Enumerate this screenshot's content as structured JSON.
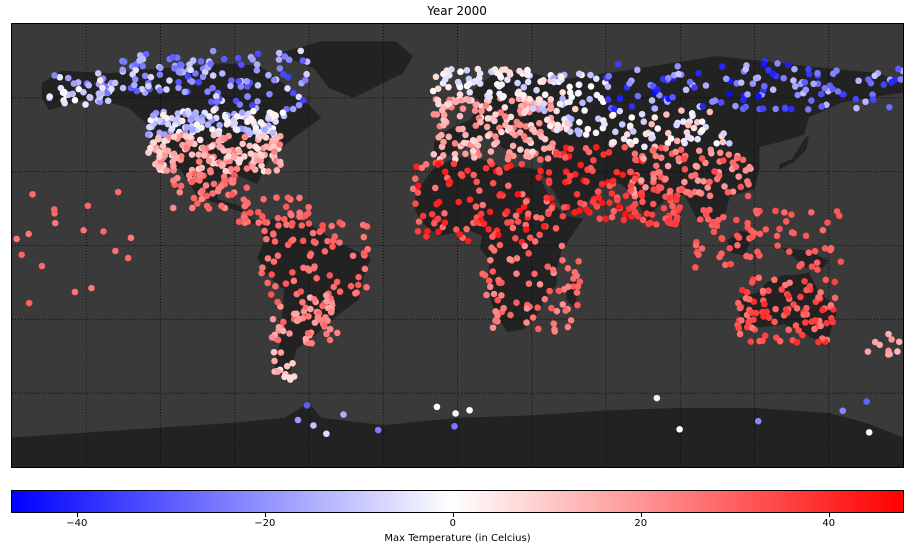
{
  "title": "Year 2000",
  "colorbar": {
    "label": "Max Temperature (in Celcius)",
    "min": -47,
    "max": 48,
    "ticks": [
      -40,
      -20,
      0,
      20,
      40
    ],
    "tick_labels": [
      "−40",
      "−20",
      "0",
      "20",
      "40"
    ],
    "colormap": "bwr",
    "colors": {
      "low": "#0000ff",
      "mid": "#ffffff",
      "high": "#ff0000"
    }
  },
  "map": {
    "projection": "equirectangular",
    "lon_range": [
      -180,
      180
    ],
    "lat_range": [
      -90,
      90
    ],
    "ocean_color": "#3a3a3a",
    "land_color": "#222222",
    "graticule": {
      "lon_step": 30,
      "lat_step": 30,
      "style": "dotted"
    }
  },
  "chart_data": {
    "type": "scatter",
    "title": "Year 2000",
    "xlabel": "",
    "ylabel": "",
    "color_label": "Max Temperature (in Celcius)",
    "color_range": [
      -47,
      48
    ],
    "regions": [
      {
        "lon": [
          -165,
          -140
        ],
        "lat": [
          56,
          70
        ],
        "temp": [
          -25,
          5
        ],
        "n": 40
      },
      {
        "lon": [
          -140,
          -100
        ],
        "lat": [
          62,
          78
        ],
        "temp": [
          -35,
          -5
        ],
        "n": 70
      },
      {
        "lon": [
          -100,
          -60
        ],
        "lat": [
          55,
          80
        ],
        "temp": [
          -35,
          -5
        ],
        "n": 60
      },
      {
        "lon": [
          -125,
          -70
        ],
        "lat": [
          45,
          55
        ],
        "temp": [
          -20,
          5
        ],
        "n": 120
      },
      {
        "lon": [
          -125,
          -70
        ],
        "lat": [
          30,
          45
        ],
        "temp": [
          5,
          25
        ],
        "n": 160
      },
      {
        "lon": [
          -115,
          -85
        ],
        "lat": [
          15,
          30
        ],
        "temp": [
          20,
          32
        ],
        "n": 50
      },
      {
        "lon": [
          -90,
          -60
        ],
        "lat": [
          8,
          20
        ],
        "temp": [
          25,
          32
        ],
        "n": 35
      },
      {
        "lon": [
          -80,
          -35
        ],
        "lat": [
          -20,
          10
        ],
        "temp": [
          25,
          33
        ],
        "n": 70
      },
      {
        "lon": [
          -75,
          -48
        ],
        "lat": [
          -40,
          -20
        ],
        "temp": [
          15,
          30
        ],
        "n": 60
      },
      {
        "lon": [
          -75,
          -65
        ],
        "lat": [
          -55,
          -40
        ],
        "temp": [
          5,
          18
        ],
        "n": 14
      },
      {
        "lon": [
          -10,
          40
        ],
        "lat": [
          35,
          60
        ],
        "temp": [
          5,
          25
        ],
        "n": 170
      },
      {
        "lon": [
          -10,
          30
        ],
        "lat": [
          60,
          72
        ],
        "temp": [
          -10,
          8
        ],
        "n": 60
      },
      {
        "lon": [
          30,
          60
        ],
        "lat": [
          45,
          70
        ],
        "temp": [
          -15,
          10
        ],
        "n": 70
      },
      {
        "lon": [
          -18,
          40
        ],
        "lat": [
          0,
          35
        ],
        "temp": [
          25,
          45
        ],
        "n": 110
      },
      {
        "lon": [
          10,
          50
        ],
        "lat": [
          -35,
          0
        ],
        "temp": [
          20,
          32
        ],
        "n": 70
      },
      {
        "lon": [
          35,
          75
        ],
        "lat": [
          10,
          40
        ],
        "temp": [
          28,
          45
        ],
        "n": 80
      },
      {
        "lon": [
          60,
          110
        ],
        "lat": [
          40,
          55
        ],
        "temp": [
          -10,
          15
        ],
        "n": 60
      },
      {
        "lon": [
          60,
          140
        ],
        "lat": [
          55,
          75
        ],
        "temp": [
          -45,
          -10
        ],
        "n": 90
      },
      {
        "lon": [
          140,
          180
        ],
        "lat": [
          55,
          72
        ],
        "temp": [
          -40,
          -10
        ],
        "n": 40
      },
      {
        "lon": [
          70,
          120
        ],
        "lat": [
          20,
          40
        ],
        "temp": [
          15,
          35
        ],
        "n": 90
      },
      {
        "lon": [
          70,
          90
        ],
        "lat": [
          8,
          25
        ],
        "temp": [
          30,
          38
        ],
        "n": 40
      },
      {
        "lon": [
          95,
          155
        ],
        "lat": [
          -10,
          15
        ],
        "temp": [
          28,
          33
        ],
        "n": 70
      },
      {
        "lon": [
          113,
          153
        ],
        "lat": [
          -40,
          -12
        ],
        "temp": [
          25,
          40
        ],
        "n": 100
      },
      {
        "lon": [
          165,
          180
        ],
        "lat": [
          -45,
          -35
        ],
        "temp": [
          12,
          20
        ],
        "n": 10
      },
      {
        "lon": [
          -180,
          -130
        ],
        "lat": [
          -30,
          25
        ],
        "temp": [
          25,
          30
        ],
        "n": 18
      },
      {
        "lon": [
          -70,
          170
        ],
        "lat": [
          -78,
          -60
        ],
        "temp": [
          -30,
          3
        ],
        "n": 16
      }
    ]
  }
}
